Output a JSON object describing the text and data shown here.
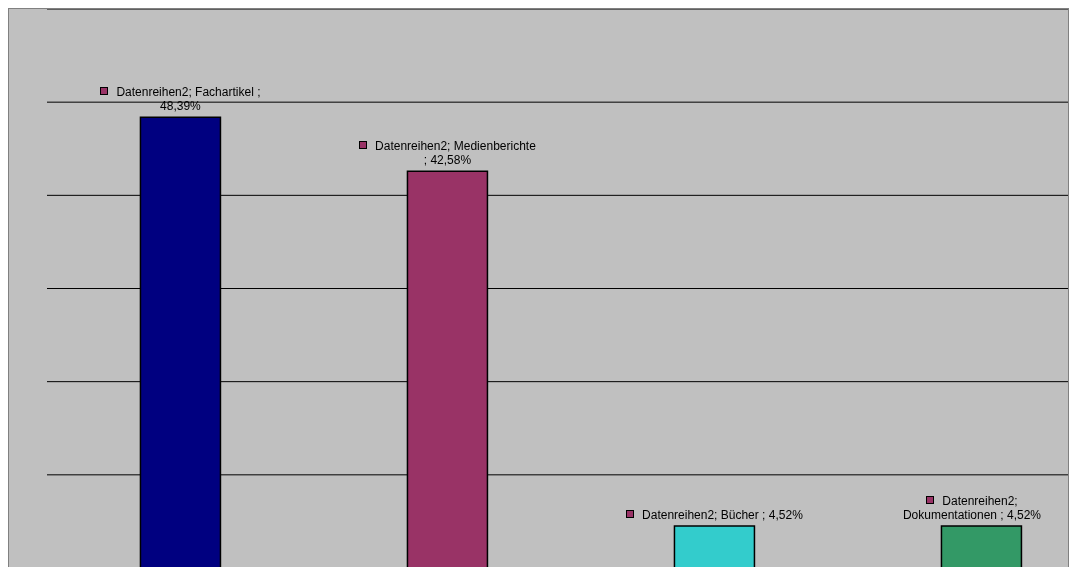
{
  "chart_data": {
    "type": "bar",
    "categories": [
      null,
      null,
      null,
      null
    ],
    "values": [
      48.39,
      42.58,
      4.52,
      4.52
    ],
    "colors": [
      "#000080",
      "#993366",
      "#33cccc",
      "#339966"
    ],
    "value_labels": [
      "Datenreihen2; Fachartikel ; 48,39%",
      "Datenreihen2; Medienberichte ; 42,58%",
      "Datenreihen2; Bücher ; 4,52%",
      "Datenreihen2; Dokumentationen ; 4,52%"
    ],
    "ylim": [
      0,
      60
    ],
    "yticks": [
      {
        "value": 0,
        "label": null
      },
      {
        "value": 10,
        "label": null
      },
      {
        "value": 20,
        "label": null
      },
      {
        "value": 30,
        "label": null
      },
      {
        "value": 40,
        "label": null
      },
      {
        "value": 50,
        "label": null
      },
      {
        "value": 60,
        "label": null
      }
    ],
    "grid": "y"
  }
}
